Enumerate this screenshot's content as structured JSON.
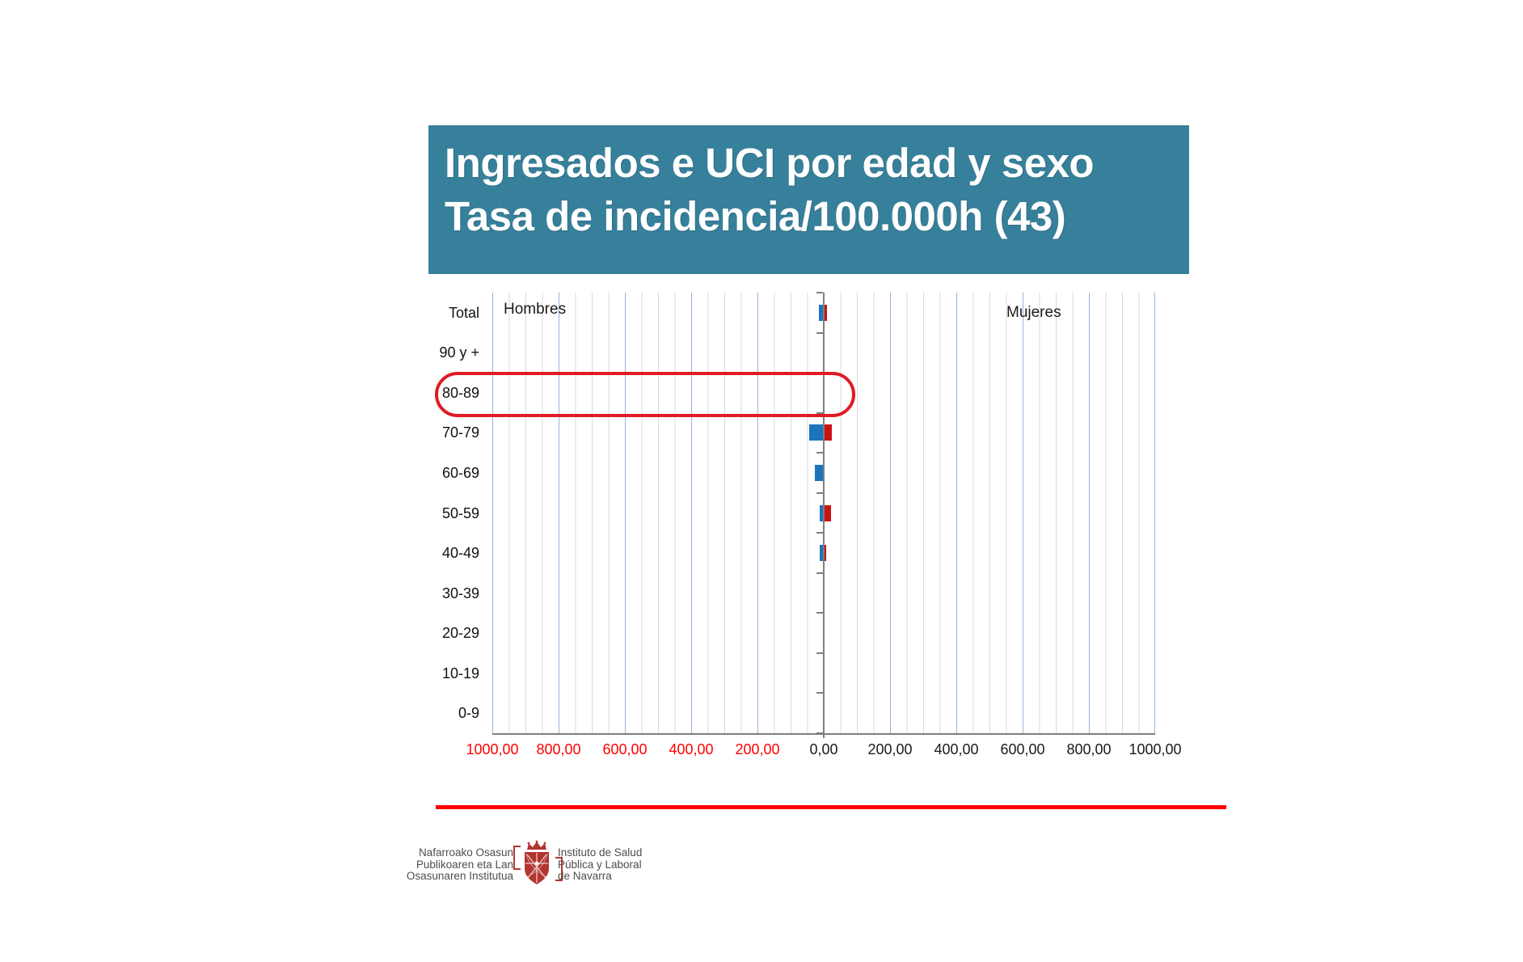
{
  "slide_title": {
    "line1": "Ingresados e UCI por edad y sexo",
    "line2": "Tasa de incidencia/100.000h (43)"
  },
  "colors": {
    "title_bg": "#37809b",
    "title_text": "#ffffff",
    "bar_hombres": "#1b75bc",
    "bar_mujeres": "#cb1212",
    "grid_major": "#95b3d7",
    "grid_minor": "#d9d9d9",
    "axis": "#7f7f7f",
    "negative_tick_label": "#ff0000",
    "annotation_red": "#e01b24",
    "divider_red": "#ff0000",
    "logo_red": "#b23530"
  },
  "chart_data": {
    "type": "bar",
    "subtype": "population-pyramid-horizontal",
    "title": "Ingresados e UCI por edad y sexo — Tasa de incidencia/100.000h (43)",
    "categories": [
      "Total",
      "90 y +",
      "80-89",
      "70-79",
      "60-69",
      "50-59",
      "40-49",
      "30-39",
      "20-29",
      "10-19",
      "0-9"
    ],
    "series": [
      {
        "name": "Hombres",
        "side": "left",
        "color": "#1b75bc",
        "values": [
          12,
          0,
          0,
          41,
          24,
          10,
          10,
          0,
          0,
          0,
          0
        ]
      },
      {
        "name": "Mujeres",
        "side": "right",
        "color": "#cb1212",
        "values": [
          7,
          0,
          0,
          22,
          0,
          20,
          5,
          0,
          0,
          0,
          0
        ]
      }
    ],
    "x_range": [
      -1000,
      1000
    ],
    "x_tick_step": 200,
    "x_tick_labels": [
      "1000,00",
      "800,00",
      "600,00",
      "400,00",
      "200,00",
      "0,00",
      "200,00",
      "400,00",
      "600,00",
      "800,00",
      "1000,00"
    ],
    "x_tick_labels_red_count": 5,
    "minor_grid_step": 50,
    "grid": "on",
    "legend": "series names shown inside plot: Hombres top-left, Mujeres top-right"
  },
  "annotation": {
    "type": "ellipse",
    "highlighted_category": "80-89"
  },
  "footer": {
    "left_lines": [
      "Nafarroako Osasun",
      "Publikoaren eta Lan",
      "Osasunaren Institutua"
    ],
    "right_lines": [
      "Instituto de Salud",
      "Pública y Laboral",
      "de Navarra"
    ],
    "crest": "navarra-coat-of-arms"
  }
}
